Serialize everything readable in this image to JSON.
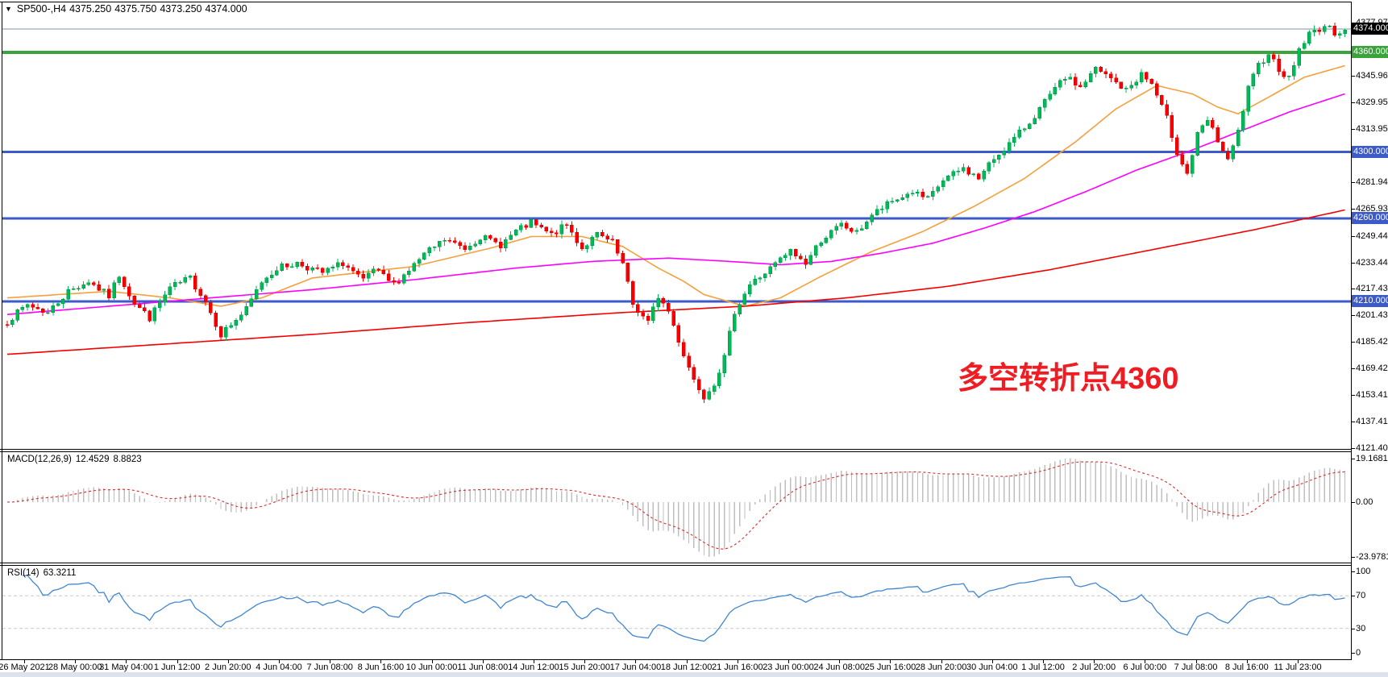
{
  "header": {
    "symbol": "SP500-,H4",
    "open": "4375.250",
    "high": "4375.750",
    "low": "4373.250",
    "close": "4374.000"
  },
  "annotation": {
    "text": "多空转折点4360",
    "color": "#EE1D23"
  },
  "colors": {
    "up": "#00B957",
    "up_edge": "#009445",
    "down": "#F80000",
    "down_edge": "#D40000",
    "level_blue": "#3C5AC8",
    "level_green": "#3BA33B",
    "current_price_line": "#7F96A8",
    "current_badge_bg": "#000000",
    "macd_hist": "#BFBFBF",
    "macd_signal": "#DD2A2A",
    "rsi_line": "#3F86CF",
    "rsi_level_line": "#C9C9C9",
    "axis_text": "#000000",
    "bottom_strip": "#DDE3EC",
    "ma_fast": "#F5A03C",
    "ma_medium": "#FF00FF",
    "ma_slow": "#F40000"
  },
  "time_axis": {
    "labels": [
      "26 May 2021",
      "28 May 00:00",
      "31 May 04:00",
      "1 Jun 12:00",
      "2 Jun 20:00",
      "4 Jun 04:00",
      "7 Jun 08:00",
      "8 Jun 16:00",
      "10 Jun 00:00",
      "11 Jun 08:00",
      "14 Jun 12:00",
      "15 Jun 20:00",
      "17 Jun 04:00",
      "18 Jun 12:00",
      "21 Jun 16:00",
      "23 Jun 00:00",
      "24 Jun 08:00",
      "25 Jun 16:00",
      "28 Jun 20:00",
      "30 Jun 04:00",
      "1 Jul 12:00",
      "2 Jul 20:00",
      "6 Jul 00:00",
      "7 Jul 08:00",
      "8 Jul 16:00",
      "11 Jul 23:00"
    ]
  },
  "macd": {
    "name": "MACD(12,26,9)",
    "main_value": "12.4529",
    "signal_value": "8.8823",
    "y_ticks": [
      {
        "label": "19.1681",
        "value": 19.1681
      },
      {
        "label": "0.00",
        "value": 0
      },
      {
        "label": "-23.9781",
        "value": -23.9781
      }
    ]
  },
  "rsi": {
    "name": "RSI(14)",
    "value": "63.3211",
    "y_ticks": [
      {
        "label": "100",
        "value": 100
      },
      {
        "label": "70",
        "value": 70
      },
      {
        "label": "30",
        "value": 30
      },
      {
        "label": "0",
        "value": 0
      }
    ],
    "levels": [
      70,
      30
    ]
  },
  "chart_data": [
    {
      "id": "price",
      "type": "candlestick",
      "title": "SP500-,H4",
      "n_candles": 264,
      "view_price_range": [
        4121.0,
        4390.5
      ],
      "y_axis_ticks": [
        {
          "label": "4377.970",
          "price": 4377.97
        },
        {
          "label": "4345.960",
          "price": 4345.96
        },
        {
          "label": "4329.955",
          "price": 4329.955
        },
        {
          "label": "4313.950",
          "price": 4313.95
        },
        {
          "label": "4281.940",
          "price": 4281.94
        },
        {
          "label": "4265.935",
          "price": 4265.935
        },
        {
          "label": "4249.445",
          "price": 4249.445
        },
        {
          "label": "4233.440",
          "price": 4233.44
        },
        {
          "label": "4217.435",
          "price": 4217.435
        },
        {
          "label": "4201.430",
          "price": 4201.43
        },
        {
          "label": "4185.425",
          "price": 4185.425
        },
        {
          "label": "4169.420",
          "price": 4169.42
        },
        {
          "label": "4153.415",
          "price": 4153.415
        },
        {
          "label": "4137.410",
          "price": 4137.41
        },
        {
          "label": "4121.405",
          "price": 4121.405
        }
      ],
      "price_badges": [
        {
          "label": "4374.000",
          "price": 4374.0,
          "bg": "#000000",
          "kind": "current-price"
        },
        {
          "label": "4360.000",
          "price": 4360.0,
          "bg": "#3BA33B",
          "kind": "horizontal-line"
        },
        {
          "label": "4300.000",
          "price": 4300.0,
          "bg": "#3C5AC8",
          "kind": "horizontal-line"
        },
        {
          "label": "4260.000",
          "price": 4260.0,
          "bg": "#3C5AC8",
          "kind": "horizontal-line"
        },
        {
          "label": "4210.000",
          "price": 4210.0,
          "bg": "#3C5AC8",
          "kind": "horizontal-line"
        }
      ],
      "levels": [
        {
          "price": 4374.0,
          "color": "#7F96A8",
          "width": 1
        },
        {
          "price": 4360.0,
          "color": "#3BA33B",
          "width": 4
        },
        {
          "price": 4300.0,
          "color": "#3C5AC8",
          "width": 3
        },
        {
          "price": 4260.0,
          "color": "#3C5AC8",
          "width": 3
        },
        {
          "price": 4210.0,
          "color": "#3C5AC8",
          "width": 3
        }
      ],
      "close_path_anchors": [
        [
          0,
          4198
        ],
        [
          4,
          4208
        ],
        [
          8,
          4203
        ],
        [
          12,
          4216
        ],
        [
          16,
          4222
        ],
        [
          20,
          4213
        ],
        [
          22,
          4226
        ],
        [
          25,
          4209
        ],
        [
          28,
          4200
        ],
        [
          32,
          4218
        ],
        [
          36,
          4224
        ],
        [
          39,
          4210
        ],
        [
          42,
          4190
        ],
        [
          44,
          4196
        ],
        [
          47,
          4205
        ],
        [
          50,
          4222
        ],
        [
          53,
          4230
        ],
        [
          57,
          4233
        ],
        [
          62,
          4227
        ],
        [
          66,
          4233
        ],
        [
          70,
          4222
        ],
        [
          72,
          4229
        ],
        [
          76,
          4220
        ],
        [
          80,
          4232
        ],
        [
          82,
          4238
        ],
        [
          86,
          4247
        ],
        [
          90,
          4242
        ],
        [
          93,
          4249
        ],
        [
          97,
          4244
        ],
        [
          100,
          4252
        ],
        [
          103,
          4257
        ],
        [
          107,
          4250
        ],
        [
          110,
          4256
        ],
        [
          113,
          4242
        ],
        [
          116,
          4250
        ],
        [
          119,
          4245
        ],
        [
          121,
          4232
        ],
        [
          123,
          4208
        ],
        [
          126,
          4197
        ],
        [
          128,
          4213
        ],
        [
          130,
          4204
        ],
        [
          133,
          4178
        ],
        [
          135,
          4163
        ],
        [
          137,
          4153
        ],
        [
          139,
          4161
        ],
        [
          141,
          4176
        ],
        [
          143,
          4204
        ],
        [
          146,
          4220
        ],
        [
          149,
          4227
        ],
        [
          152,
          4235
        ],
        [
          154,
          4240
        ],
        [
          157,
          4233
        ],
        [
          160,
          4247
        ],
        [
          164,
          4256
        ],
        [
          167,
          4251
        ],
        [
          170,
          4262
        ],
        [
          174,
          4270
        ],
        [
          178,
          4276
        ],
        [
          181,
          4271
        ],
        [
          184,
          4283
        ],
        [
          188,
          4290
        ],
        [
          191,
          4284
        ],
        [
          194,
          4296
        ],
        [
          198,
          4308
        ],
        [
          201,
          4318
        ],
        [
          204,
          4330
        ],
        [
          208,
          4345
        ],
        [
          211,
          4339
        ],
        [
          214,
          4350
        ],
        [
          217,
          4344
        ],
        [
          220,
          4337
        ],
        [
          223,
          4347
        ],
        [
          225,
          4341
        ],
        [
          228,
          4320
        ],
        [
          230,
          4300
        ],
        [
          232,
          4287
        ],
        [
          234,
          4310
        ],
        [
          236,
          4319
        ],
        [
          238,
          4307
        ],
        [
          240,
          4294
        ],
        [
          242,
          4312
        ],
        [
          244,
          4338
        ],
        [
          246,
          4352
        ],
        [
          248,
          4360
        ],
        [
          250,
          4350
        ],
        [
          252,
          4344
        ],
        [
          254,
          4362
        ],
        [
          256,
          4371
        ],
        [
          259,
          4376
        ],
        [
          261,
          4372
        ],
        [
          263,
          4374
        ]
      ],
      "moving_averages": [
        {
          "name": "ma-fast",
          "color": "#F5A03C",
          "anchors": [
            [
              0,
              4212
            ],
            [
              20,
              4216
            ],
            [
              32,
              4212
            ],
            [
              42,
              4207
            ],
            [
              50,
              4212
            ],
            [
              60,
              4224
            ],
            [
              80,
              4231
            ],
            [
              95,
              4242
            ],
            [
              103,
              4249
            ],
            [
              113,
              4249
            ],
            [
              121,
              4243
            ],
            [
              128,
              4230
            ],
            [
              133,
              4222
            ],
            [
              137,
              4214
            ],
            [
              145,
              4207
            ],
            [
              152,
              4212
            ],
            [
              160,
              4225
            ],
            [
              170,
              4240
            ],
            [
              180,
              4252
            ],
            [
              190,
              4267
            ],
            [
              200,
              4284
            ],
            [
              210,
              4306
            ],
            [
              218,
              4326
            ],
            [
              226,
              4340
            ],
            [
              233,
              4335
            ],
            [
              238,
              4327
            ],
            [
              242,
              4323
            ],
            [
              248,
              4333
            ],
            [
              255,
              4345
            ],
            [
              263,
              4352
            ]
          ]
        },
        {
          "name": "ma-medium",
          "color": "#FF00FF",
          "anchors": [
            [
              0,
              4202
            ],
            [
              20,
              4207
            ],
            [
              40,
              4212
            ],
            [
              60,
              4217
            ],
            [
              80,
              4223
            ],
            [
              100,
              4230
            ],
            [
              115,
              4234
            ],
            [
              130,
              4236
            ],
            [
              142,
              4234
            ],
            [
              152,
              4232
            ],
            [
              162,
              4234
            ],
            [
              172,
              4239
            ],
            [
              182,
              4245
            ],
            [
              192,
              4254
            ],
            [
              202,
              4264
            ],
            [
              212,
              4276
            ],
            [
              222,
              4289
            ],
            [
              232,
              4300
            ],
            [
              242,
              4312
            ],
            [
              252,
              4324
            ],
            [
              263,
              4335
            ]
          ]
        },
        {
          "name": "ma-slow",
          "color": "#F40000",
          "anchors": [
            [
              0,
              4178
            ],
            [
              30,
              4184
            ],
            [
              60,
              4190
            ],
            [
              90,
              4197
            ],
            [
              120,
              4203
            ],
            [
              145,
              4207
            ],
            [
              165,
              4212
            ],
            [
              185,
              4219
            ],
            [
              205,
              4229
            ],
            [
              225,
              4241
            ],
            [
              245,
              4253
            ],
            [
              263,
              4265
            ]
          ]
        }
      ]
    },
    {
      "id": "macd",
      "type": "macd-histogram",
      "label": "MACD(12,26,9)",
      "main_value": 12.4529,
      "signal_value": 8.8823,
      "y_ticks": [
        19.1681,
        0.0,
        -23.9781
      ],
      "histogram_color": "#BFBFBF",
      "signal_color": "#DD2A2A",
      "signal_style": "dashed"
    },
    {
      "id": "rsi",
      "type": "line",
      "label": "RSI(14)",
      "last_value": 63.3211,
      "y_ticks": [
        100,
        70,
        30,
        0
      ],
      "levels": [
        70,
        30
      ],
      "line_color": "#3F86CF"
    }
  ]
}
